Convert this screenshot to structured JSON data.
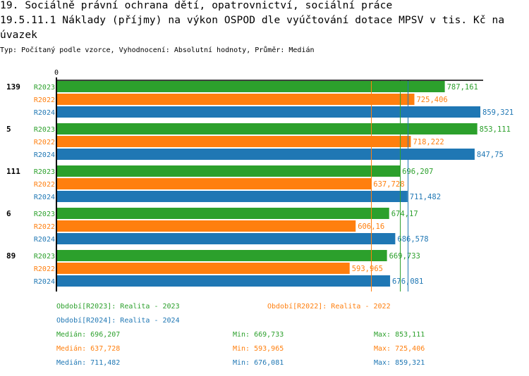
{
  "header": {
    "title_line1": "19. Sociálně právní ochrana dětí, opatrovnictví, sociální práce",
    "title_line2": "19.5.11.1 Náklady (příjmy) na výkon OSPOD dle vyúčtování dotace MPSV v tis. Kč na",
    "title_line3": " úvazek",
    "subtitle": "Typ: Počítaný podle vzorce, Vyhodnocení: Absolutní hodnoty, Průměr: Medián"
  },
  "colors": {
    "R2023": "#2ca02c",
    "R2022": "#ff7f0e",
    "R2024": "#1f77b4",
    "axis": "#000000"
  },
  "chart_data": {
    "type": "bar",
    "orientation": "horizontal",
    "x_tick_labels": [
      "0"
    ],
    "xlim": [
      0,
      859.321
    ],
    "categories": [
      "139",
      "5",
      "111",
      "6",
      "89"
    ],
    "series": [
      {
        "name": "R2023",
        "values": [
          787.161,
          853.111,
          696.207,
          674.17,
          669.733
        ],
        "labels": [
          "787,161",
          "853,111",
          "696,207",
          "674,17",
          "669,733"
        ]
      },
      {
        "name": "R2022",
        "values": [
          725.406,
          718.222,
          637.728,
          606.16,
          593.965
        ],
        "labels": [
          "725,406",
          "718,222",
          "637,728",
          "606,16",
          "593,965"
        ]
      },
      {
        "name": "R2024",
        "values": [
          859.321,
          847.75,
          711.482,
          686.578,
          676.081
        ],
        "labels": [
          "859,321",
          "847,75",
          "711,482",
          "686,578",
          "676,081"
        ]
      }
    ],
    "median_lines": [
      {
        "series": "R2022",
        "value": 637.728
      },
      {
        "series": "R2023",
        "value": 696.207
      },
      {
        "series": "R2024",
        "value": 711.482
      }
    ],
    "legend": {
      "entries": [
        {
          "series": "R2023",
          "text": "Období[R2023]: Realita - 2023"
        },
        {
          "series": "R2022",
          "text": "Období[R2022]: Realita - 2022"
        },
        {
          "series": "R2024",
          "text": "Období[R2024]: Realita - 2024"
        }
      ],
      "stats": [
        {
          "series": "R2023",
          "median": "Medián: 696,207",
          "min": "Min: 669,733",
          "max": "Max: 853,111"
        },
        {
          "series": "R2022",
          "median": "Medián: 637,728",
          "min": "Min: 593,965",
          "max": "Max: 725,406"
        },
        {
          "series": "R2024",
          "median": "Medián: 711,482",
          "min": "Min: 676,081",
          "max": "Max: 859,321"
        }
      ],
      "placement": "bottom"
    }
  }
}
